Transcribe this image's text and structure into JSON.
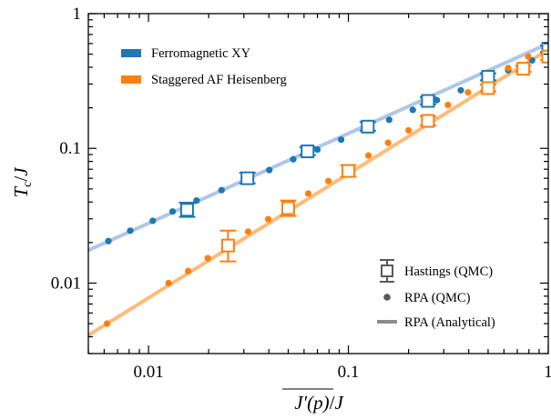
{
  "chart_data": {
    "type": "scatter",
    "xscale": "log",
    "yscale": "log",
    "xlim": [
      0.005,
      1
    ],
    "ylim": [
      0.003,
      1
    ],
    "xticks": [
      {
        "value": 0.01,
        "label": "0.01"
      },
      {
        "value": 0.1,
        "label": "0.1"
      },
      {
        "value": 1,
        "label": "1"
      }
    ],
    "yticks": [
      {
        "value": 0.01,
        "label": "0.01"
      },
      {
        "value": 0.1,
        "label": "0.1"
      },
      {
        "value": 1,
        "label": "1"
      }
    ],
    "xlabel": "J′(p)/J",
    "ylabel": "T_c/J",
    "legend_top": {
      "placement": "top-left",
      "entries": [
        {
          "label": "Ferromagnetic XY",
          "color": "#1f77b4"
        },
        {
          "label": "Staggered AF Heisenberg",
          "color": "#ff7f0e"
        }
      ]
    },
    "legend_bottom": {
      "placement": "bottom-right",
      "entries": [
        {
          "label": "Hastings (QMC)",
          "marker": "open-square-errorbar"
        },
        {
          "label": "RPA (QMC)",
          "marker": "dot"
        },
        {
          "label": "RPA (Analytical)",
          "marker": "line"
        }
      ]
    },
    "series": [
      {
        "name": "Ferromagnetic XY",
        "color": "#1f77b4",
        "line_color": "#aec7e8",
        "line": {
          "x": [
            0.005,
            1
          ],
          "y": [
            0.0175,
            0.6
          ]
        },
        "rpa_qmc": {
          "x": [
            0.0063,
            0.0081,
            0.0105,
            0.0132,
            0.0174,
            0.0232,
            0.0305,
            0.0402,
            0.053,
            0.07,
            0.092,
            0.121,
            0.16,
            0.21,
            0.277,
            0.365,
            0.48,
            0.63,
            0.83
          ],
          "y": [
            0.0205,
            0.0245,
            0.029,
            0.034,
            0.041,
            0.049,
            0.058,
            0.069,
            0.083,
            0.098,
            0.116,
            0.138,
            0.163,
            0.193,
            0.228,
            0.27,
            0.32,
            0.38,
            0.45
          ]
        },
        "hastings": {
          "x": [
            0.0156,
            0.03125,
            0.0625,
            0.125,
            0.25,
            0.5,
            1.0
          ],
          "y": [
            0.035,
            0.06,
            0.095,
            0.145,
            0.225,
            0.34,
            0.55
          ],
          "yerr_low": [
            0.031,
            0.055,
            0.089,
            0.135,
            0.212,
            0.32,
            0.52
          ],
          "yerr_high": [
            0.0395,
            0.066,
            0.102,
            0.157,
            0.24,
            0.36,
            0.58
          ]
        }
      },
      {
        "name": "Staggered AF Heisenberg",
        "color": "#ff7f0e",
        "line_color": "#ffbb78",
        "line": {
          "x": [
            0.005,
            1
          ],
          "y": [
            0.0041,
            0.54
          ]
        },
        "rpa_qmc": {
          "x": [
            0.0062,
            0.0126,
            0.0158,
            0.0198,
            0.0252,
            0.0315,
            0.0397,
            0.05,
            0.063,
            0.0794,
            0.1,
            0.126,
            0.158,
            0.2,
            0.252,
            0.315,
            0.397,
            0.5,
            0.63,
            0.794,
            1.0
          ],
          "y": [
            0.005,
            0.01,
            0.0123,
            0.0153,
            0.0193,
            0.0241,
            0.0298,
            0.0372,
            0.0462,
            0.0572,
            0.0712,
            0.0885,
            0.11,
            0.136,
            0.169,
            0.21,
            0.26,
            0.32,
            0.395,
            0.48,
            0.56
          ]
        },
        "hastings": {
          "x": [
            0.025,
            0.05,
            0.1,
            0.25,
            0.5,
            0.75,
            1.0
          ],
          "y": [
            0.019,
            0.036,
            0.068,
            0.16,
            0.28,
            0.39,
            0.48
          ],
          "yerr_low": [
            0.0145,
            0.0315,
            0.0615,
            0.148,
            0.265,
            0.37,
            0.455
          ],
          "yerr_high": [
            0.0245,
            0.041,
            0.075,
            0.173,
            0.297,
            0.41,
            0.505
          ]
        }
      }
    ]
  }
}
